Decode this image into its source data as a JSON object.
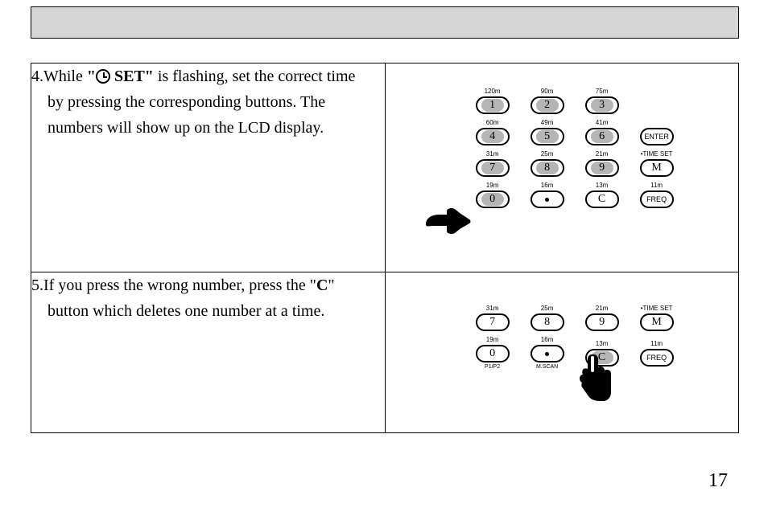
{
  "page_number": "17",
  "step4": {
    "prefix": "4.While ",
    "quote_open": "\"",
    "set_word": " SET\"",
    "rest1": "  is flashing, set",
    "rest1b": " the correct time",
    "line2": "by pressing the corresponding",
    "line2b": " buttons. The",
    "line3": "numbers will show up on the LCD display."
  },
  "step5": {
    "line1a": "5.If you press the wrong number, press the  \"",
    "bold_c": "C",
    "line1b": "\"",
    "line2": "button which deletes",
    "line2b": " one number at a time."
  },
  "keypad1": {
    "rows": [
      [
        {
          "label": "120m",
          "txt": "1",
          "shaded": true,
          "below": ""
        },
        {
          "label": "90m",
          "txt": "2",
          "shaded": true,
          "below": ""
        },
        {
          "label": "75m",
          "txt": "3",
          "shaded": true,
          "below": ""
        },
        null
      ],
      [
        {
          "label": "60m",
          "txt": "4",
          "shaded": true,
          "below": ""
        },
        {
          "label": "49m",
          "txt": "5",
          "shaded": true,
          "below": ""
        },
        {
          "label": "41m",
          "txt": "6",
          "shaded": true,
          "below": ""
        },
        {
          "label": "",
          "txt": "ENTER",
          "shaded": false,
          "small": true,
          "below": ""
        }
      ],
      [
        {
          "label": "31m",
          "txt": "7",
          "shaded": true,
          "below": ""
        },
        {
          "label": "25m",
          "txt": "8",
          "shaded": true,
          "below": ""
        },
        {
          "label": "21m",
          "txt": "9",
          "shaded": true,
          "below": ""
        },
        {
          "label": "•TIME SET",
          "txt": "M",
          "shaded": false,
          "below": ""
        }
      ],
      [
        {
          "label": "19m",
          "txt": "0",
          "shaded": true,
          "below": ""
        },
        {
          "label": "16m",
          "txt": "•",
          "shaded": false,
          "dot": true,
          "below": ""
        },
        {
          "label": "13m",
          "txt": "C",
          "shaded": false,
          "below": ""
        },
        {
          "label": "11m",
          "txt": "FREQ",
          "shaded": false,
          "small": true,
          "below": ""
        }
      ]
    ]
  },
  "keypad2": {
    "rows": [
      [
        {
          "label": "31m",
          "txt": "7",
          "shaded": false,
          "below": ""
        },
        {
          "label": "25m",
          "txt": "8",
          "shaded": false,
          "below": ""
        },
        {
          "label": "21m",
          "txt": "9",
          "shaded": false,
          "below": ""
        },
        {
          "label": "•TIME SET",
          "txt": "M",
          "shaded": false,
          "below": ""
        }
      ],
      [
        {
          "label": "19m",
          "txt": "0",
          "shaded": false,
          "below": "P1/P2"
        },
        {
          "label": "16m",
          "txt": "•",
          "shaded": false,
          "dot": true,
          "below": "M.SCAN"
        },
        {
          "label": "13m",
          "txt": "C",
          "shaded": true,
          "below": ""
        },
        {
          "label": "11m",
          "txt": "FREQ",
          "shaded": false,
          "small": true,
          "below": ""
        }
      ]
    ]
  },
  "colors": {
    "shaded": "#b5b5b5",
    "header": "#d6d6d6"
  }
}
